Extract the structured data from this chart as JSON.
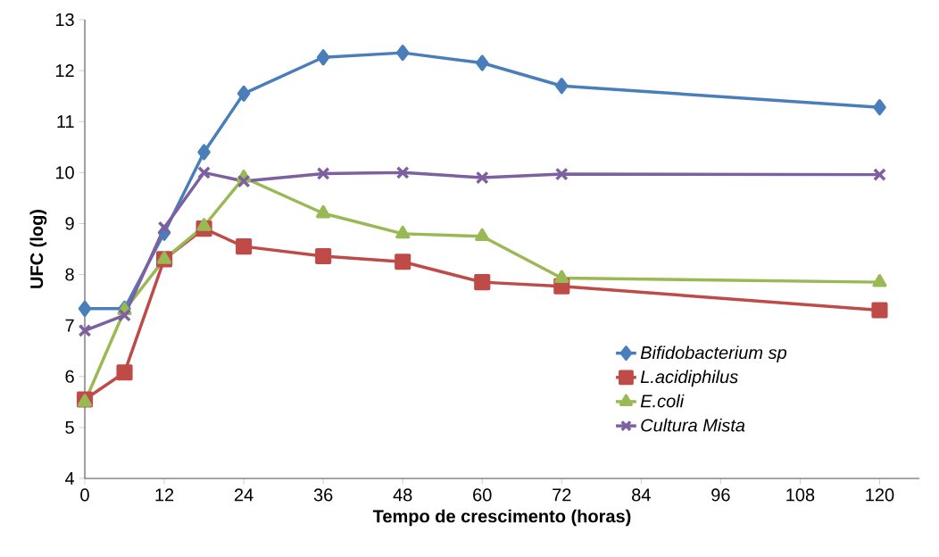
{
  "chart_data": {
    "type": "line",
    "xlabel": "Tempo de crescimento (horas)",
    "ylabel": "UFC (log)",
    "x": [
      0,
      6,
      12,
      18,
      24,
      36,
      48,
      60,
      72,
      120
    ],
    "xlim": [
      0,
      126
    ],
    "xticks": [
      0,
      12,
      24,
      36,
      48,
      60,
      72,
      84,
      96,
      108,
      120
    ],
    "ylim": [
      4,
      13
    ],
    "yticks": [
      4,
      5,
      6,
      7,
      8,
      9,
      10,
      11,
      12,
      13
    ],
    "grid": false,
    "legend": "bottom right",
    "line_style": "solid",
    "series": [
      {
        "name": "Bifidobacterium sp",
        "color": "#4a7ebb",
        "marker": "diamond",
        "values": [
          7.33,
          7.33,
          8.82,
          10.4,
          11.55,
          12.26,
          12.35,
          12.15,
          11.7,
          11.28
        ]
      },
      {
        "name": "L.acidiphilus",
        "color": "#be4b48",
        "marker": "square",
        "values": [
          5.55,
          6.08,
          8.3,
          8.9,
          8.55,
          8.36,
          8.25,
          7.85,
          7.77,
          7.3
        ]
      },
      {
        "name": "E.coli",
        "color": "#98b954",
        "marker": "triangle",
        "values": [
          5.5,
          7.3,
          8.3,
          8.95,
          9.9,
          9.2,
          8.8,
          8.75,
          7.93,
          7.85
        ]
      },
      {
        "name": "Cultura Mista",
        "color": "#7d60a0",
        "marker": "cross",
        "values": [
          6.9,
          7.2,
          8.92,
          10.0,
          9.83,
          9.98,
          10.0,
          9.9,
          9.97,
          9.96
        ]
      }
    ]
  }
}
